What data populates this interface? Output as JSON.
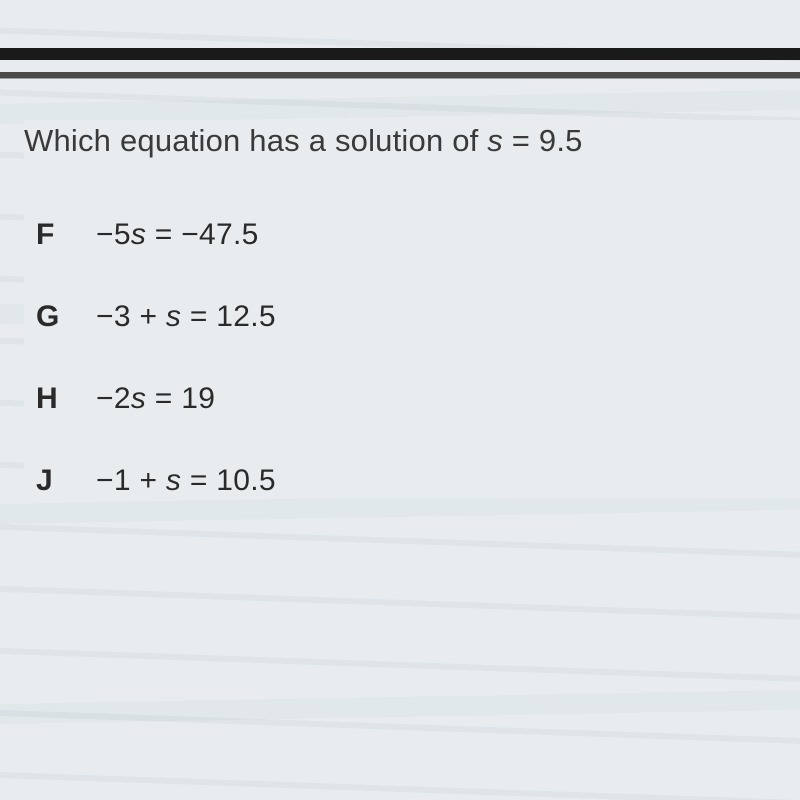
{
  "background_color": "#e8ecee",
  "text_color": "#3a3a3a",
  "font_family": "Verdana, Geneva, sans-serif",
  "question": {
    "prefix": "Which equation has a solution of ",
    "variable": "s",
    "equals": " = 9.5",
    "fontsize": 31
  },
  "choices": [
    {
      "label": "F",
      "prefix": "−5",
      "var": "s",
      "suffix": " = −47.5"
    },
    {
      "label": "G",
      "prefix": "−3 + ",
      "var": "s",
      "suffix": " = 12.5"
    },
    {
      "label": "H",
      "prefix": "−2",
      "var": "s",
      "suffix": " = 19"
    },
    {
      "label": "J",
      "prefix": "−1 + ",
      "var": "s",
      "suffix": " = 10.5"
    }
  ],
  "choice_fontsize": 30,
  "choice_label_weight": 700
}
